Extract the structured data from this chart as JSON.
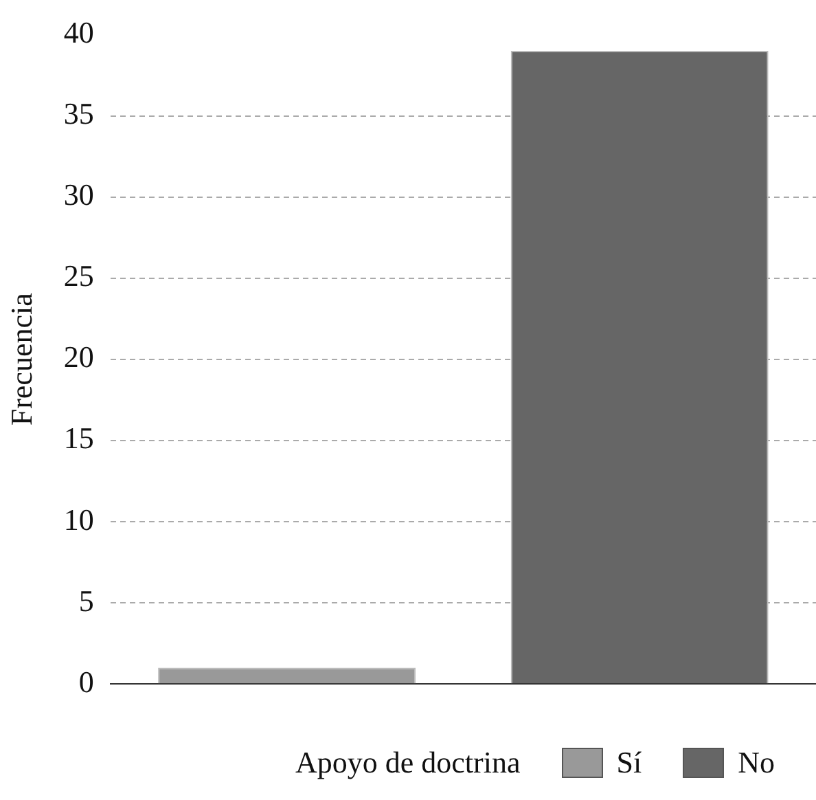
{
  "chart_data": {
    "type": "bar",
    "ylabel": "Frecuencia",
    "legend_title": "Apoyo de doctrina",
    "categories": [
      null,
      null
    ],
    "series": [
      {
        "name": "Sí",
        "color": "#999999",
        "values": [
          1,
          null
        ]
      },
      {
        "name": "No",
        "color": "#666666",
        "values": [
          null,
          39
        ]
      }
    ],
    "ylim": [
      0,
      40
    ],
    "yticks": [
      0,
      5,
      10,
      15,
      20,
      25,
      30,
      35,
      40
    ],
    "grid": "y",
    "legend": "bottom"
  }
}
